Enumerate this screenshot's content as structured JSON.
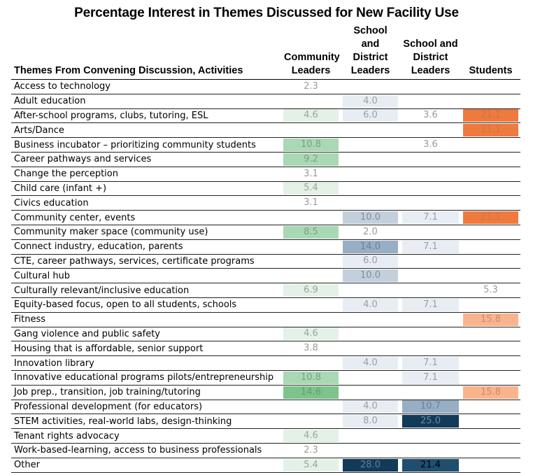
{
  "title": "Percentage Interest in Themes Discussed for New Facility Use",
  "columns": {
    "theme": "Themes From Convening Discussion, Activities",
    "community": "Community\nLeaders",
    "school1": "School and\nDistrict\nLeaders",
    "school2": "School and\nDistrict\nLeaders",
    "students": "Students"
  },
  "colors": {
    "green_light": "#e3f1e7",
    "green_mid": "#a9d8b4",
    "green_dark": "#7cc48b",
    "blue_pale": "#e7edf3",
    "blue_light": "#c3d0dc",
    "blue_mid": "#97aec4",
    "blue_dark": "#1f4e6e",
    "blue_darkest": "#123a59",
    "orange_light": "#f9b48e",
    "orange": "#ef7a3e"
  },
  "rows": [
    {
      "theme": "Access to technology",
      "community": "2.3",
      "school1": "",
      "school2": "",
      "students": ""
    },
    {
      "theme": "Adult education",
      "community": "",
      "school1": "4.0",
      "school2": "",
      "students": ""
    },
    {
      "theme": "After-school programs, clubs, tutoring, ESL",
      "community": "4.6",
      "school1": "6.0",
      "school2": "3.6",
      "students": "21.1"
    },
    {
      "theme": "Arts/Dance",
      "community": "",
      "school1": "",
      "school2": "",
      "students": "21.1"
    },
    {
      "theme": "Business incubator – prioritizing community students",
      "community": "10.8",
      "school1": "",
      "school2": "3.6",
      "students": ""
    },
    {
      "theme": "Career pathways and services",
      "community": "9.2",
      "school1": "",
      "school2": "",
      "students": ""
    },
    {
      "theme": "Change the perception",
      "community": "3.1",
      "school1": "",
      "school2": "",
      "students": ""
    },
    {
      "theme": "Child care (infant +)",
      "community": "5.4",
      "school1": "",
      "school2": "",
      "students": ""
    },
    {
      "theme": "Civics education",
      "community": "3.1",
      "school1": "",
      "school2": "",
      "students": ""
    },
    {
      "theme": "Community center, events",
      "community": "",
      "school1": "10.0",
      "school2": "7.1",
      "students": "21.1"
    },
    {
      "theme": "Community maker space (community use)",
      "community": "8.5",
      "school1": "2.0",
      "school2": "",
      "students": ""
    },
    {
      "theme": "Connect industry, education, parents",
      "community": "",
      "school1": "14.0",
      "school2": "7.1",
      "students": ""
    },
    {
      "theme": "CTE, career pathways, services, certificate programs",
      "community": "",
      "school1": "6.0",
      "school2": "",
      "students": ""
    },
    {
      "theme": "Cultural hub",
      "community": "",
      "school1": "10.0",
      "school2": "",
      "students": ""
    },
    {
      "theme": "Culturally relevant/inclusive education",
      "community": "6.9",
      "school1": "",
      "school2": "",
      "students": "5.3"
    },
    {
      "theme": "Equity-based focus, open to all students, schools",
      "community": "",
      "school1": "4.0",
      "school2": "7.1",
      "students": ""
    },
    {
      "theme": "Fitness",
      "community": "",
      "school1": "",
      "school2": "",
      "students": "15.8"
    },
    {
      "theme": "Gang violence and public safety",
      "community": "4.6",
      "school1": "",
      "school2": "",
      "students": ""
    },
    {
      "theme": "Housing that is affordable, senior support",
      "community": "3.8",
      "school1": "",
      "school2": "",
      "students": ""
    },
    {
      "theme": "Innovation library",
      "community": "",
      "school1": "4.0",
      "school2": "7.1",
      "students": ""
    },
    {
      "theme": "Innovative educational programs pilots/entrepreneurship",
      "community": "10.8",
      "school1": "",
      "school2": "7.1",
      "students": ""
    },
    {
      "theme": "Job prep., transition, job training/tutoring",
      "community": "14.6",
      "school1": "",
      "school2": "",
      "students": "15.8"
    },
    {
      "theme": "Professional development (for educators)",
      "community": "",
      "school1": "4.0",
      "school2": "10.7",
      "students": ""
    },
    {
      "theme": "STEM activities, real-world labs, design-thinking",
      "community": "",
      "school1": "8.0",
      "school2": "25.0",
      "students": ""
    },
    {
      "theme": "Tenant rights advocacy",
      "community": "4.6",
      "school1": "",
      "school2": "",
      "students": ""
    },
    {
      "theme": "Work-based-learning, access to business professionals",
      "community": "2.3",
      "school1": "",
      "school2": "",
      "students": ""
    },
    {
      "theme": "Other",
      "community": "5.4",
      "school1": "28.0",
      "school2": "21.4",
      "students": ""
    }
  ]
}
